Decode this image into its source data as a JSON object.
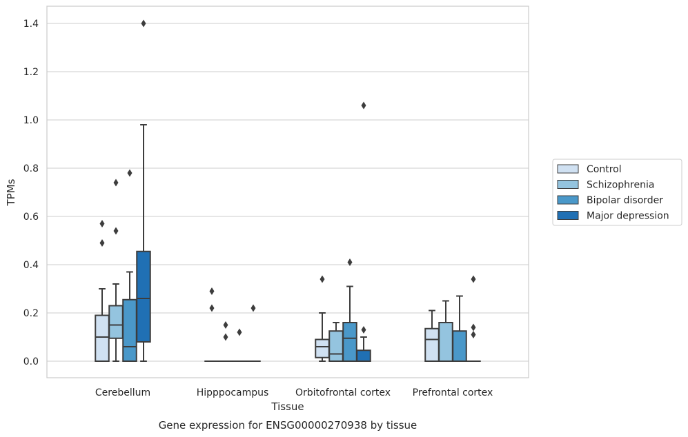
{
  "chart_data": {
    "type": "box",
    "xlabel": "Tissue",
    "ylabel": "TPMs",
    "caption": "Gene expression for ENSG00000270938 by tissue",
    "ylim": [
      -0.07,
      1.47
    ],
    "yticks": [
      "0.0",
      "0.2",
      "0.4",
      "0.6",
      "0.8",
      "1.0",
      "1.2",
      "1.4"
    ],
    "grid": "horizontal",
    "legend_position": "right",
    "categories": [
      "Cerebellum",
      "Hipppocampus",
      "Orbitofrontal cortex",
      "Prefrontal cortex"
    ],
    "series": [
      {
        "name": "Control",
        "color": "#d0e1f2",
        "boxes": [
          {
            "q1": 0.0,
            "median": 0.1,
            "q3": 0.19,
            "whislo": 0.0,
            "whishi": 0.3,
            "fliers": [
              0.49,
              0.57
            ]
          },
          {
            "q1": 0.0,
            "median": 0.0,
            "q3": 0.0,
            "whislo": 0.0,
            "whishi": 0.0,
            "fliers": [
              0.22,
              0.29
            ]
          },
          {
            "q1": 0.015,
            "median": 0.06,
            "q3": 0.09,
            "whislo": 0.0,
            "whishi": 0.2,
            "fliers": [
              0.34
            ]
          },
          {
            "q1": 0.0,
            "median": 0.09,
            "q3": 0.135,
            "whislo": 0.0,
            "whishi": 0.21,
            "fliers": []
          }
        ]
      },
      {
        "name": "Schizophrenia",
        "color": "#94c4df",
        "boxes": [
          {
            "q1": 0.095,
            "median": 0.15,
            "q3": 0.23,
            "whislo": 0.0,
            "whishi": 0.32,
            "fliers": [
              0.54,
              0.74
            ]
          },
          {
            "q1": 0.0,
            "median": 0.0,
            "q3": 0.0,
            "whislo": 0.0,
            "whishi": 0.0,
            "fliers": [
              0.1,
              0.15
            ]
          },
          {
            "q1": 0.0,
            "median": 0.03,
            "q3": 0.125,
            "whislo": 0.0,
            "whishi": 0.16,
            "fliers": []
          },
          {
            "q1": 0.0,
            "median": 0.0,
            "q3": 0.16,
            "whislo": 0.0,
            "whishi": 0.25,
            "fliers": []
          }
        ]
      },
      {
        "name": "Bipolar disorder",
        "color": "#4a98c9",
        "boxes": [
          {
            "q1": 0.0,
            "median": 0.06,
            "q3": 0.255,
            "whislo": 0.0,
            "whishi": 0.37,
            "fliers": [
              0.78
            ]
          },
          {
            "q1": 0.0,
            "median": 0.0,
            "q3": 0.0,
            "whislo": 0.0,
            "whishi": 0.0,
            "fliers": [
              0.12
            ]
          },
          {
            "q1": 0.0,
            "median": 0.095,
            "q3": 0.16,
            "whislo": 0.0,
            "whishi": 0.31,
            "fliers": [
              0.41
            ]
          },
          {
            "q1": 0.0,
            "median": 0.0,
            "q3": 0.125,
            "whislo": 0.0,
            "whishi": 0.27,
            "fliers": []
          }
        ]
      },
      {
        "name": "Major depression",
        "color": "#2070b4",
        "boxes": [
          {
            "q1": 0.08,
            "median": 0.26,
            "q3": 0.455,
            "whislo": 0.0,
            "whishi": 0.98,
            "fliers": [
              1.4
            ]
          },
          {
            "q1": 0.0,
            "median": 0.0,
            "q3": 0.0,
            "whislo": 0.0,
            "whishi": 0.0,
            "fliers": [
              0.22
            ]
          },
          {
            "q1": 0.0,
            "median": 0.0,
            "q3": 0.045,
            "whislo": 0.0,
            "whishi": 0.1,
            "fliers": [
              0.13,
              1.06
            ]
          },
          {
            "q1": 0.0,
            "median": 0.0,
            "q3": 0.0,
            "whislo": 0.0,
            "whishi": 0.0,
            "fliers": [
              0.11,
              0.14,
              0.34
            ]
          }
        ]
      }
    ]
  }
}
